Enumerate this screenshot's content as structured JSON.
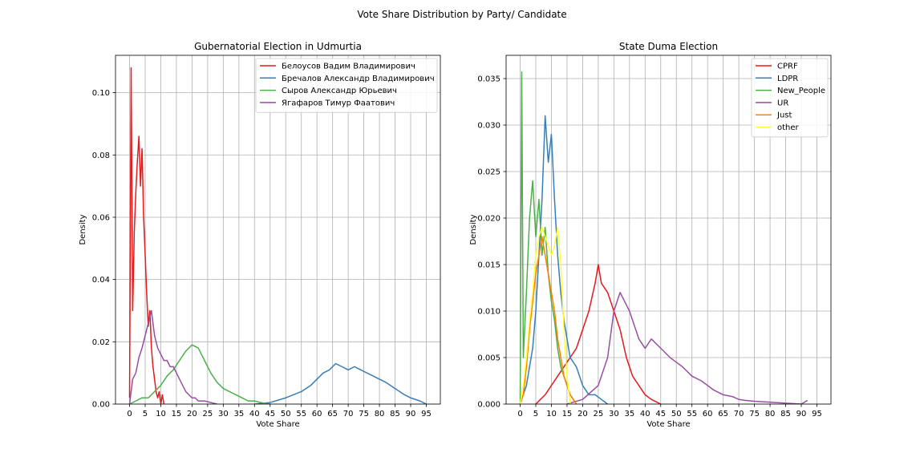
{
  "figure": {
    "suptitle": "Vote Share Distribution by Party/ Candidate"
  },
  "chart_data": [
    {
      "type": "line",
      "title": "Gubernatorial Election in Udmurtia",
      "xlabel": "Vote Share",
      "ylabel": "Density",
      "xlim": [
        -4.5,
        99.5
      ],
      "ylim": [
        0,
        0.112
      ],
      "xticks": [
        0,
        5,
        10,
        15,
        20,
        25,
        30,
        35,
        40,
        45,
        50,
        55,
        60,
        65,
        70,
        75,
        80,
        85,
        90,
        95
      ],
      "yticks": [
        0.0,
        0.02,
        0.04,
        0.06,
        0.08,
        0.1
      ],
      "ytick_labels": [
        "0.00",
        "0.02",
        "0.04",
        "0.06",
        "0.08",
        "0.10"
      ],
      "grid": true,
      "legend_position": "top-right",
      "series": [
        {
          "name": "Белоусов Вадим Владимирович",
          "color": "#e41a1c",
          "x": [
            0.0,
            0.5,
            1.0,
            1.5,
            2.0,
            2.5,
            3.0,
            3.5,
            4.0,
            4.5,
            5.0,
            5.5,
            6.0,
            6.5,
            7.0,
            7.5,
            8.0,
            8.5,
            9.0,
            9.5,
            10.0,
            10.5,
            11.0
          ],
          "y": [
            0.002,
            0.108,
            0.03,
            0.055,
            0.068,
            0.078,
            0.086,
            0.07,
            0.082,
            0.06,
            0.048,
            0.035,
            0.025,
            0.03,
            0.018,
            0.012,
            0.008,
            0.004,
            0.002,
            0.004,
            0.0,
            0.003,
            0.0
          ]
        },
        {
          "name": "Бречалов Александр Владимирович",
          "color": "#377eb8",
          "x": [
            40,
            45,
            50,
            55,
            58,
            60,
            62,
            64,
            66,
            68,
            70,
            72,
            74,
            76,
            78,
            80,
            82,
            85,
            88,
            90,
            93,
            95
          ],
          "y": [
            0.0,
            0.0005,
            0.002,
            0.004,
            0.006,
            0.008,
            0.01,
            0.011,
            0.013,
            0.012,
            0.011,
            0.012,
            0.011,
            0.01,
            0.009,
            0.008,
            0.007,
            0.005,
            0.003,
            0.002,
            0.001,
            0.0
          ]
        },
        {
          "name": "Сыров Александр Юрьевич",
          "color": "#4daf4a",
          "x": [
            0,
            2,
            4,
            6,
            8,
            10,
            12,
            14,
            16,
            18,
            20,
            22,
            24,
            26,
            28,
            30,
            32,
            34,
            36,
            38,
            40,
            42,
            45
          ],
          "y": [
            0.0,
            0.001,
            0.002,
            0.002,
            0.004,
            0.006,
            0.009,
            0.011,
            0.014,
            0.017,
            0.019,
            0.018,
            0.014,
            0.01,
            0.007,
            0.005,
            0.004,
            0.003,
            0.002,
            0.001,
            0.001,
            0.0005,
            0.0
          ]
        },
        {
          "name": "Ягафаров Тимур Фаатович",
          "color": "#984ea3",
          "x": [
            0,
            1,
            2,
            3,
            4,
            5,
            6,
            7,
            8,
            9,
            10,
            11,
            12,
            13,
            14,
            15,
            16,
            17,
            18,
            19,
            20,
            21,
            22,
            24,
            26,
            28
          ],
          "y": [
            0.0,
            0.008,
            0.01,
            0.015,
            0.018,
            0.022,
            0.026,
            0.03,
            0.022,
            0.018,
            0.016,
            0.014,
            0.014,
            0.012,
            0.012,
            0.01,
            0.008,
            0.006,
            0.004,
            0.003,
            0.002,
            0.002,
            0.001,
            0.001,
            0.0005,
            0.0
          ]
        }
      ]
    },
    {
      "type": "line",
      "title": "State Duma Election",
      "xlabel": "Vote Share",
      "ylabel": "Density",
      "xlim": [
        -4.5,
        99.5
      ],
      "ylim": [
        0,
        0.0375
      ],
      "xticks": [
        0,
        5,
        10,
        15,
        20,
        25,
        30,
        35,
        40,
        45,
        50,
        55,
        60,
        65,
        70,
        75,
        80,
        85,
        90,
        95
      ],
      "yticks": [
        0.0,
        0.005,
        0.01,
        0.015,
        0.02,
        0.025,
        0.03,
        0.035
      ],
      "ytick_labels": [
        "0.000",
        "0.005",
        "0.010",
        "0.015",
        "0.020",
        "0.025",
        "0.030",
        "0.035"
      ],
      "grid": true,
      "legend_position": "top-right",
      "series": [
        {
          "name": "CPRF",
          "color": "#e41a1c",
          "x": [
            5,
            8,
            10,
            12,
            14,
            16,
            18,
            20,
            22,
            24,
            25,
            26,
            28,
            30,
            32,
            34,
            36,
            38,
            40,
            42,
            45
          ],
          "y": [
            0.0,
            0.001,
            0.002,
            0.003,
            0.004,
            0.005,
            0.006,
            0.008,
            0.01,
            0.013,
            0.015,
            0.013,
            0.012,
            0.01,
            0.008,
            0.005,
            0.003,
            0.002,
            0.001,
            0.0005,
            0.0
          ]
        },
        {
          "name": "LDPR",
          "color": "#377eb8",
          "x": [
            0,
            2,
            4,
            5,
            6,
            7,
            8,
            9,
            10,
            11,
            12,
            13,
            14,
            15,
            16,
            18,
            20,
            22,
            24,
            26,
            28
          ],
          "y": [
            0.0,
            0.002,
            0.006,
            0.01,
            0.016,
            0.022,
            0.031,
            0.026,
            0.029,
            0.022,
            0.016,
            0.012,
            0.009,
            0.007,
            0.005,
            0.004,
            0.002,
            0.001,
            0.001,
            0.0005,
            0.0
          ]
        },
        {
          "name": "New_People",
          "color": "#4daf4a",
          "x": [
            0,
            0.5,
            1,
            2,
            3,
            4,
            5,
            6,
            7,
            8,
            9,
            10,
            11,
            12,
            13,
            14,
            15,
            16,
            17,
            18
          ],
          "y": [
            0.0,
            0.0357,
            0.005,
            0.012,
            0.02,
            0.024,
            0.018,
            0.022,
            0.016,
            0.019,
            0.014,
            0.011,
            0.009,
            0.006,
            0.004,
            0.003,
            0.002,
            0.001,
            0.0005,
            0.0
          ]
        },
        {
          "name": "UR",
          "color": "#984ea3",
          "x": [
            15,
            20,
            25,
            28,
            30,
            32,
            35,
            38,
            40,
            42,
            45,
            48,
            50,
            52,
            55,
            58,
            60,
            62,
            65,
            68,
            70,
            72,
            75,
            80,
            85,
            90,
            92
          ],
          "y": [
            0.0,
            0.0005,
            0.002,
            0.005,
            0.01,
            0.012,
            0.01,
            0.007,
            0.006,
            0.007,
            0.006,
            0.005,
            0.0045,
            0.004,
            0.003,
            0.0025,
            0.002,
            0.0015,
            0.001,
            0.0008,
            0.0005,
            0.0004,
            0.0003,
            0.0002,
            0.0001,
            0.0,
            0.0004
          ]
        },
        {
          "name": "Just",
          "color": "#ff7f00",
          "x": [
            0,
            1,
            2,
            3,
            4,
            5,
            6,
            7,
            8,
            9,
            10,
            11,
            12,
            13,
            14,
            15,
            16,
            17,
            18
          ],
          "y": [
            0.0,
            0.001,
            0.004,
            0.008,
            0.011,
            0.014,
            0.016,
            0.018,
            0.016,
            0.014,
            0.012,
            0.01,
            0.007,
            0.005,
            0.003,
            0.002,
            0.001,
            0.0005,
            0.0
          ]
        },
        {
          "name": "other",
          "color": "#ffff33",
          "x": [
            0,
            1,
            2,
            3,
            4,
            5,
            6,
            7,
            8,
            9,
            10,
            11,
            12,
            13,
            14,
            15,
            16
          ],
          "y": [
            0.0,
            0.002,
            0.005,
            0.009,
            0.012,
            0.016,
            0.018,
            0.019,
            0.018,
            0.017,
            0.016,
            0.017,
            0.019,
            0.015,
            0.008,
            0.003,
            0.0
          ]
        }
      ]
    }
  ]
}
